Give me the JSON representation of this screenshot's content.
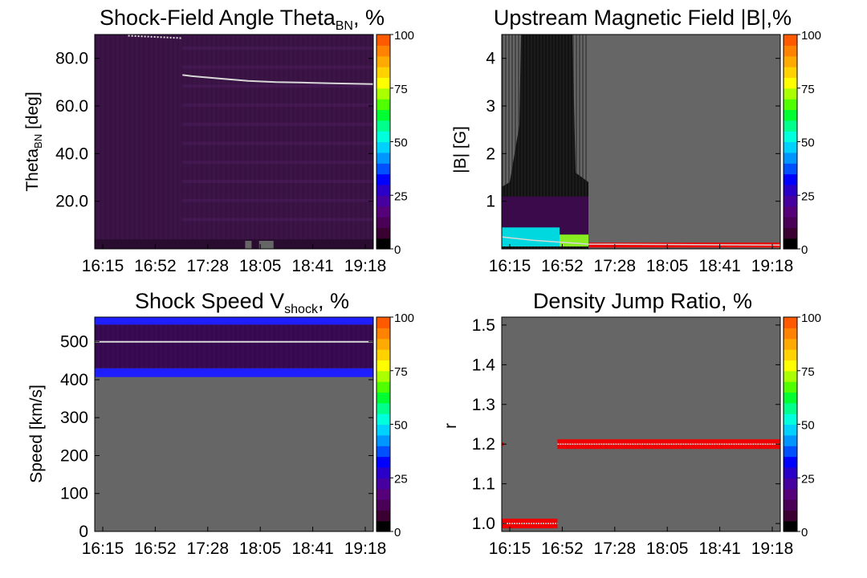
{
  "figure": {
    "colorbar": {
      "ticks": [
        "0",
        "25",
        "50",
        "75",
        "100"
      ],
      "colors": [
        "#000000",
        "#3a0032",
        "#4a0057",
        "#56007a",
        "#4600a0",
        "#2a00c8",
        "#0000ff",
        "#0050ff",
        "#0096ff",
        "#00d2ff",
        "#00ffdc",
        "#00ff8c",
        "#00ff32",
        "#50ff00",
        "#aaff00",
        "#ffff00",
        "#ffd200",
        "#ffaa00",
        "#ff8200",
        "#ff5a00"
      ]
    },
    "colors": {
      "background_gray": "#666666",
      "low_purple": "#3c1446",
      "fit_line": "#d8d8d8",
      "red_band": "#ee0000",
      "blue_band": "#1e1eff"
    }
  },
  "chart_data": [
    {
      "type": "heatmap",
      "title": "Shock-Field Angle Theta",
      "title_sub": "BN",
      "title_suffix": ", %",
      "ylabel": "Theta",
      "ylabel_sub": "BN",
      "ylabel_suffix": " [deg]",
      "xticks": [
        "16:15",
        "16:52",
        "17:28",
        "18:05",
        "18:41",
        "19:18"
      ],
      "yticks": [
        20,
        40,
        60,
        80
      ],
      "yticklabels": [
        "20.0",
        "40.0",
        "60.0",
        "80.0"
      ],
      "ylim": [
        0,
        90
      ],
      "colorbar_range": [
        0,
        100
      ],
      "description_values": {
        "fit_line_x_frac": [
          0.315,
          0.35,
          0.45,
          0.55,
          0.65,
          0.75,
          0.85,
          1.0
        ],
        "fit_line_y": [
          73,
          72.5,
          71.5,
          70.5,
          70,
          69.8,
          69.5,
          69.2
        ]
      }
    },
    {
      "type": "heatmap",
      "title": "Upstream Magnetic Field |B|,%",
      "ylabel": "|B| [G]",
      "xticks": [
        "16:15",
        "16:52",
        "17:28",
        "18:05",
        "18:41",
        "19:18"
      ],
      "yticks": [
        1,
        2,
        3,
        4
      ],
      "yticklabels": [
        "1",
        "2",
        "3",
        "4"
      ],
      "ylim": [
        0,
        4.5
      ],
      "colorbar_range": [
        0,
        100
      ],
      "red_band_y": 0.1
    },
    {
      "type": "heatmap",
      "title": "Shock Speed V",
      "title_sub": "shock",
      "title_suffix": ", %",
      "ylabel": "Speed [km/s]",
      "xticks": [
        "16:15",
        "16:52",
        "17:28",
        "18:05",
        "18:41",
        "19:18"
      ],
      "yticks": [
        0,
        100,
        200,
        300,
        400,
        500
      ],
      "yticklabels": [
        "0",
        "100",
        "200",
        "300",
        "400",
        "500"
      ],
      "ylim": [
        0,
        565
      ],
      "colorbar_range": [
        0,
        100
      ],
      "speed_line": 500
    },
    {
      "type": "heatmap",
      "title": "Density Jump Ratio, %",
      "ylabel": "r",
      "xticks": [
        "16:15",
        "16:52",
        "17:28",
        "18:05",
        "18:41",
        "19:18"
      ],
      "yticks": [
        1.0,
        1.1,
        1.2,
        1.3,
        1.4,
        1.5
      ],
      "yticklabels": [
        "1.0",
        "1.1",
        "1.2",
        "1.3",
        "1.4",
        "1.5"
      ],
      "ylim": [
        0.98,
        1.52
      ],
      "colorbar_range": [
        0,
        100
      ],
      "bands": [
        {
          "y": 1.0,
          "x_frac": [
            0.0,
            0.2
          ]
        },
        {
          "y": 1.2,
          "x_frac": [
            0.2,
            1.0
          ]
        }
      ]
    }
  ]
}
